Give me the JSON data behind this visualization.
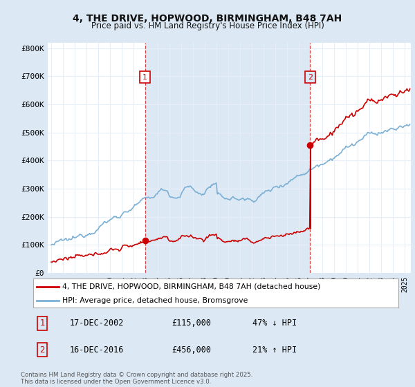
{
  "title": "4, THE DRIVE, HOPWOOD, BIRMINGHAM, B48 7AH",
  "subtitle": "Price paid vs. HM Land Registry's House Price Index (HPI)",
  "legend_line1": "4, THE DRIVE, HOPWOOD, BIRMINGHAM, B48 7AH (detached house)",
  "legend_line2": "HPI: Average price, detached house, Bromsgrove",
  "footer": "Contains HM Land Registry data © Crown copyright and database right 2025.\nThis data is licensed under the Open Government Licence v3.0.",
  "annotation1_date": "17-DEC-2002",
  "annotation1_price": "£115,000",
  "annotation1_hpi": "47% ↓ HPI",
  "annotation2_date": "16-DEC-2016",
  "annotation2_price": "£456,000",
  "annotation2_hpi": "21% ↑ HPI",
  "red_color": "#cc0000",
  "blue_color": "#7bafd4",
  "background_color": "#dce9f5",
  "plot_bg_color": "#ffffff",
  "shade_color": "#dce9f5",
  "vline_color": "#cc0000",
  "grid_color": "#e8eef8",
  "ylim": [
    0,
    820000
  ],
  "yticks": [
    0,
    100000,
    200000,
    300000,
    400000,
    500000,
    600000,
    700000,
    800000
  ],
  "ytick_labels": [
    "£0",
    "£100K",
    "£200K",
    "£300K",
    "£400K",
    "£500K",
    "£600K",
    "£700K",
    "£800K"
  ],
  "sale1_x": 2002.96,
  "sale1_y": 115000,
  "sale2_x": 2016.96,
  "sale2_y": 456000,
  "xmin": 1995,
  "xmax": 2025
}
